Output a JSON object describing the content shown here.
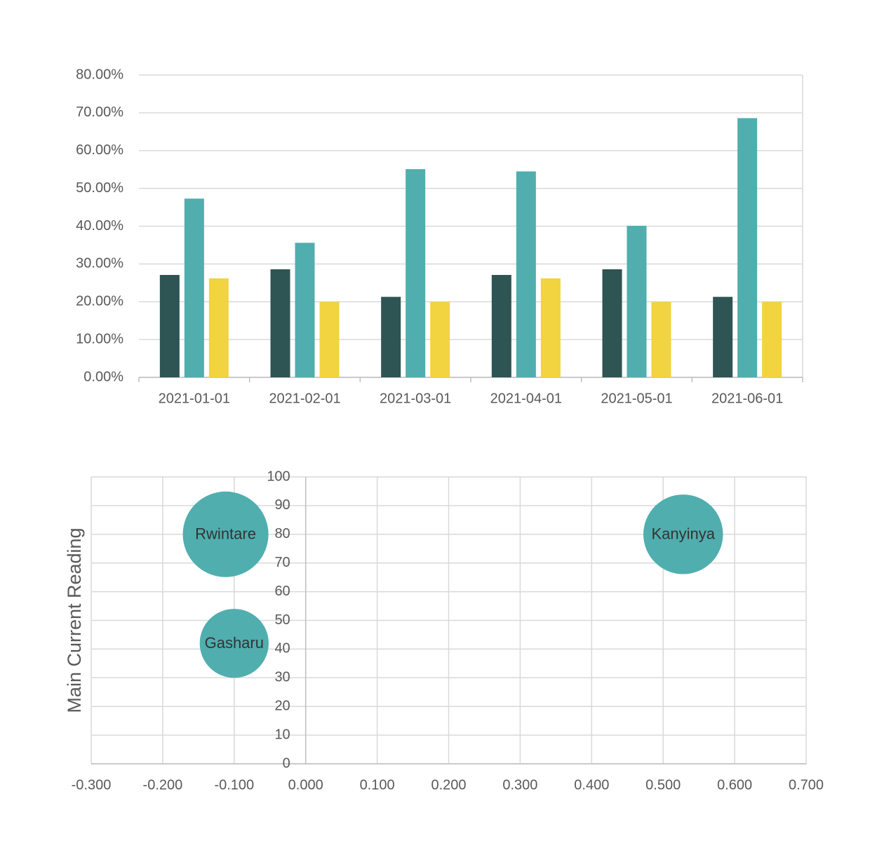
{
  "chart_data": [
    {
      "type": "bar",
      "categories": [
        "2021-01-01",
        "2021-02-01",
        "2021-03-01",
        "2021-04-01",
        "2021-05-01",
        "2021-06-01"
      ],
      "series": [
        {
          "color": "#2e5454",
          "values": [
            27.1,
            28.6,
            21.3,
            27.1,
            28.6,
            21.3
          ]
        },
        {
          "color": "#50aeae",
          "values": [
            47.3,
            35.6,
            55.1,
            54.5,
            40.1,
            68.6
          ]
        },
        {
          "color": "#f2d340",
          "values": [
            26.2,
            20.0,
            20.0,
            26.2,
            20.0,
            20.0
          ]
        }
      ],
      "ylim": [
        0,
        80
      ],
      "yticks": [
        {
          "value": 0,
          "label": "0.00%"
        },
        {
          "value": 10,
          "label": "10.00%"
        },
        {
          "value": 20,
          "label": "20.00%"
        },
        {
          "value": 30,
          "label": "30.00%"
        },
        {
          "value": 40,
          "label": "40.00%"
        },
        {
          "value": 50,
          "label": "50.00%"
        },
        {
          "value": 60,
          "label": "60.00%"
        },
        {
          "value": 70,
          "label": "70.00%"
        },
        {
          "value": 80,
          "label": "80.00%"
        }
      ],
      "grid": true
    },
    {
      "type": "bubble",
      "y_label": "Main Current Reading",
      "labels": [
        "Rwintare",
        "Gasharu",
        "Kanyinya"
      ],
      "x": [
        -0.112,
        -0.1,
        0.528
      ],
      "y": [
        80,
        42,
        80
      ],
      "sizes": [
        37,
        24,
        32
      ],
      "color": "#50aeae",
      "xlim": [
        -0.3,
        0.7
      ],
      "xticks": [
        {
          "value": -0.3,
          "label": "-0.300"
        },
        {
          "value": -0.2,
          "label": "-0.200"
        },
        {
          "value": -0.1,
          "label": "-0.100"
        },
        {
          "value": 0,
          "label": "0.000"
        },
        {
          "value": 0.1,
          "label": "0.100"
        },
        {
          "value": 0.2,
          "label": "0.200"
        },
        {
          "value": 0.3,
          "label": "0.300"
        },
        {
          "value": 0.4,
          "label": "0.400"
        },
        {
          "value": 0.5,
          "label": "0.500"
        },
        {
          "value": 0.6,
          "label": "0.600"
        },
        {
          "value": 0.7,
          "label": "0.700"
        }
      ],
      "ylim": [
        0,
        100
      ],
      "yticks": [
        0,
        10,
        20,
        30,
        40,
        50,
        60,
        70,
        80,
        90,
        100
      ],
      "grid": true
    }
  ]
}
